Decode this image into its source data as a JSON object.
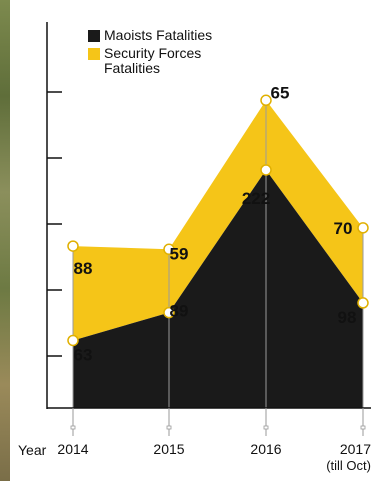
{
  "chart_data": {
    "type": "area",
    "x_axis_label": "Year",
    "categories": [
      "2014",
      "2015",
      "2016",
      "2017"
    ],
    "category_notes": [
      "",
      "",
      "",
      "(till Oct)"
    ],
    "series": [
      {
        "name": "Maoists Fatalities",
        "values": [
          63,
          89,
          222,
          98
        ],
        "color": "#1a1a1a"
      },
      {
        "name": "Security Forces Fatalities",
        "values": [
          88,
          59,
          65,
          70
        ],
        "color": "#f5c518"
      }
    ],
    "stacked": true,
    "ylim": [
      0,
      360
    ],
    "legend_position": "top",
    "grid": false
  }
}
